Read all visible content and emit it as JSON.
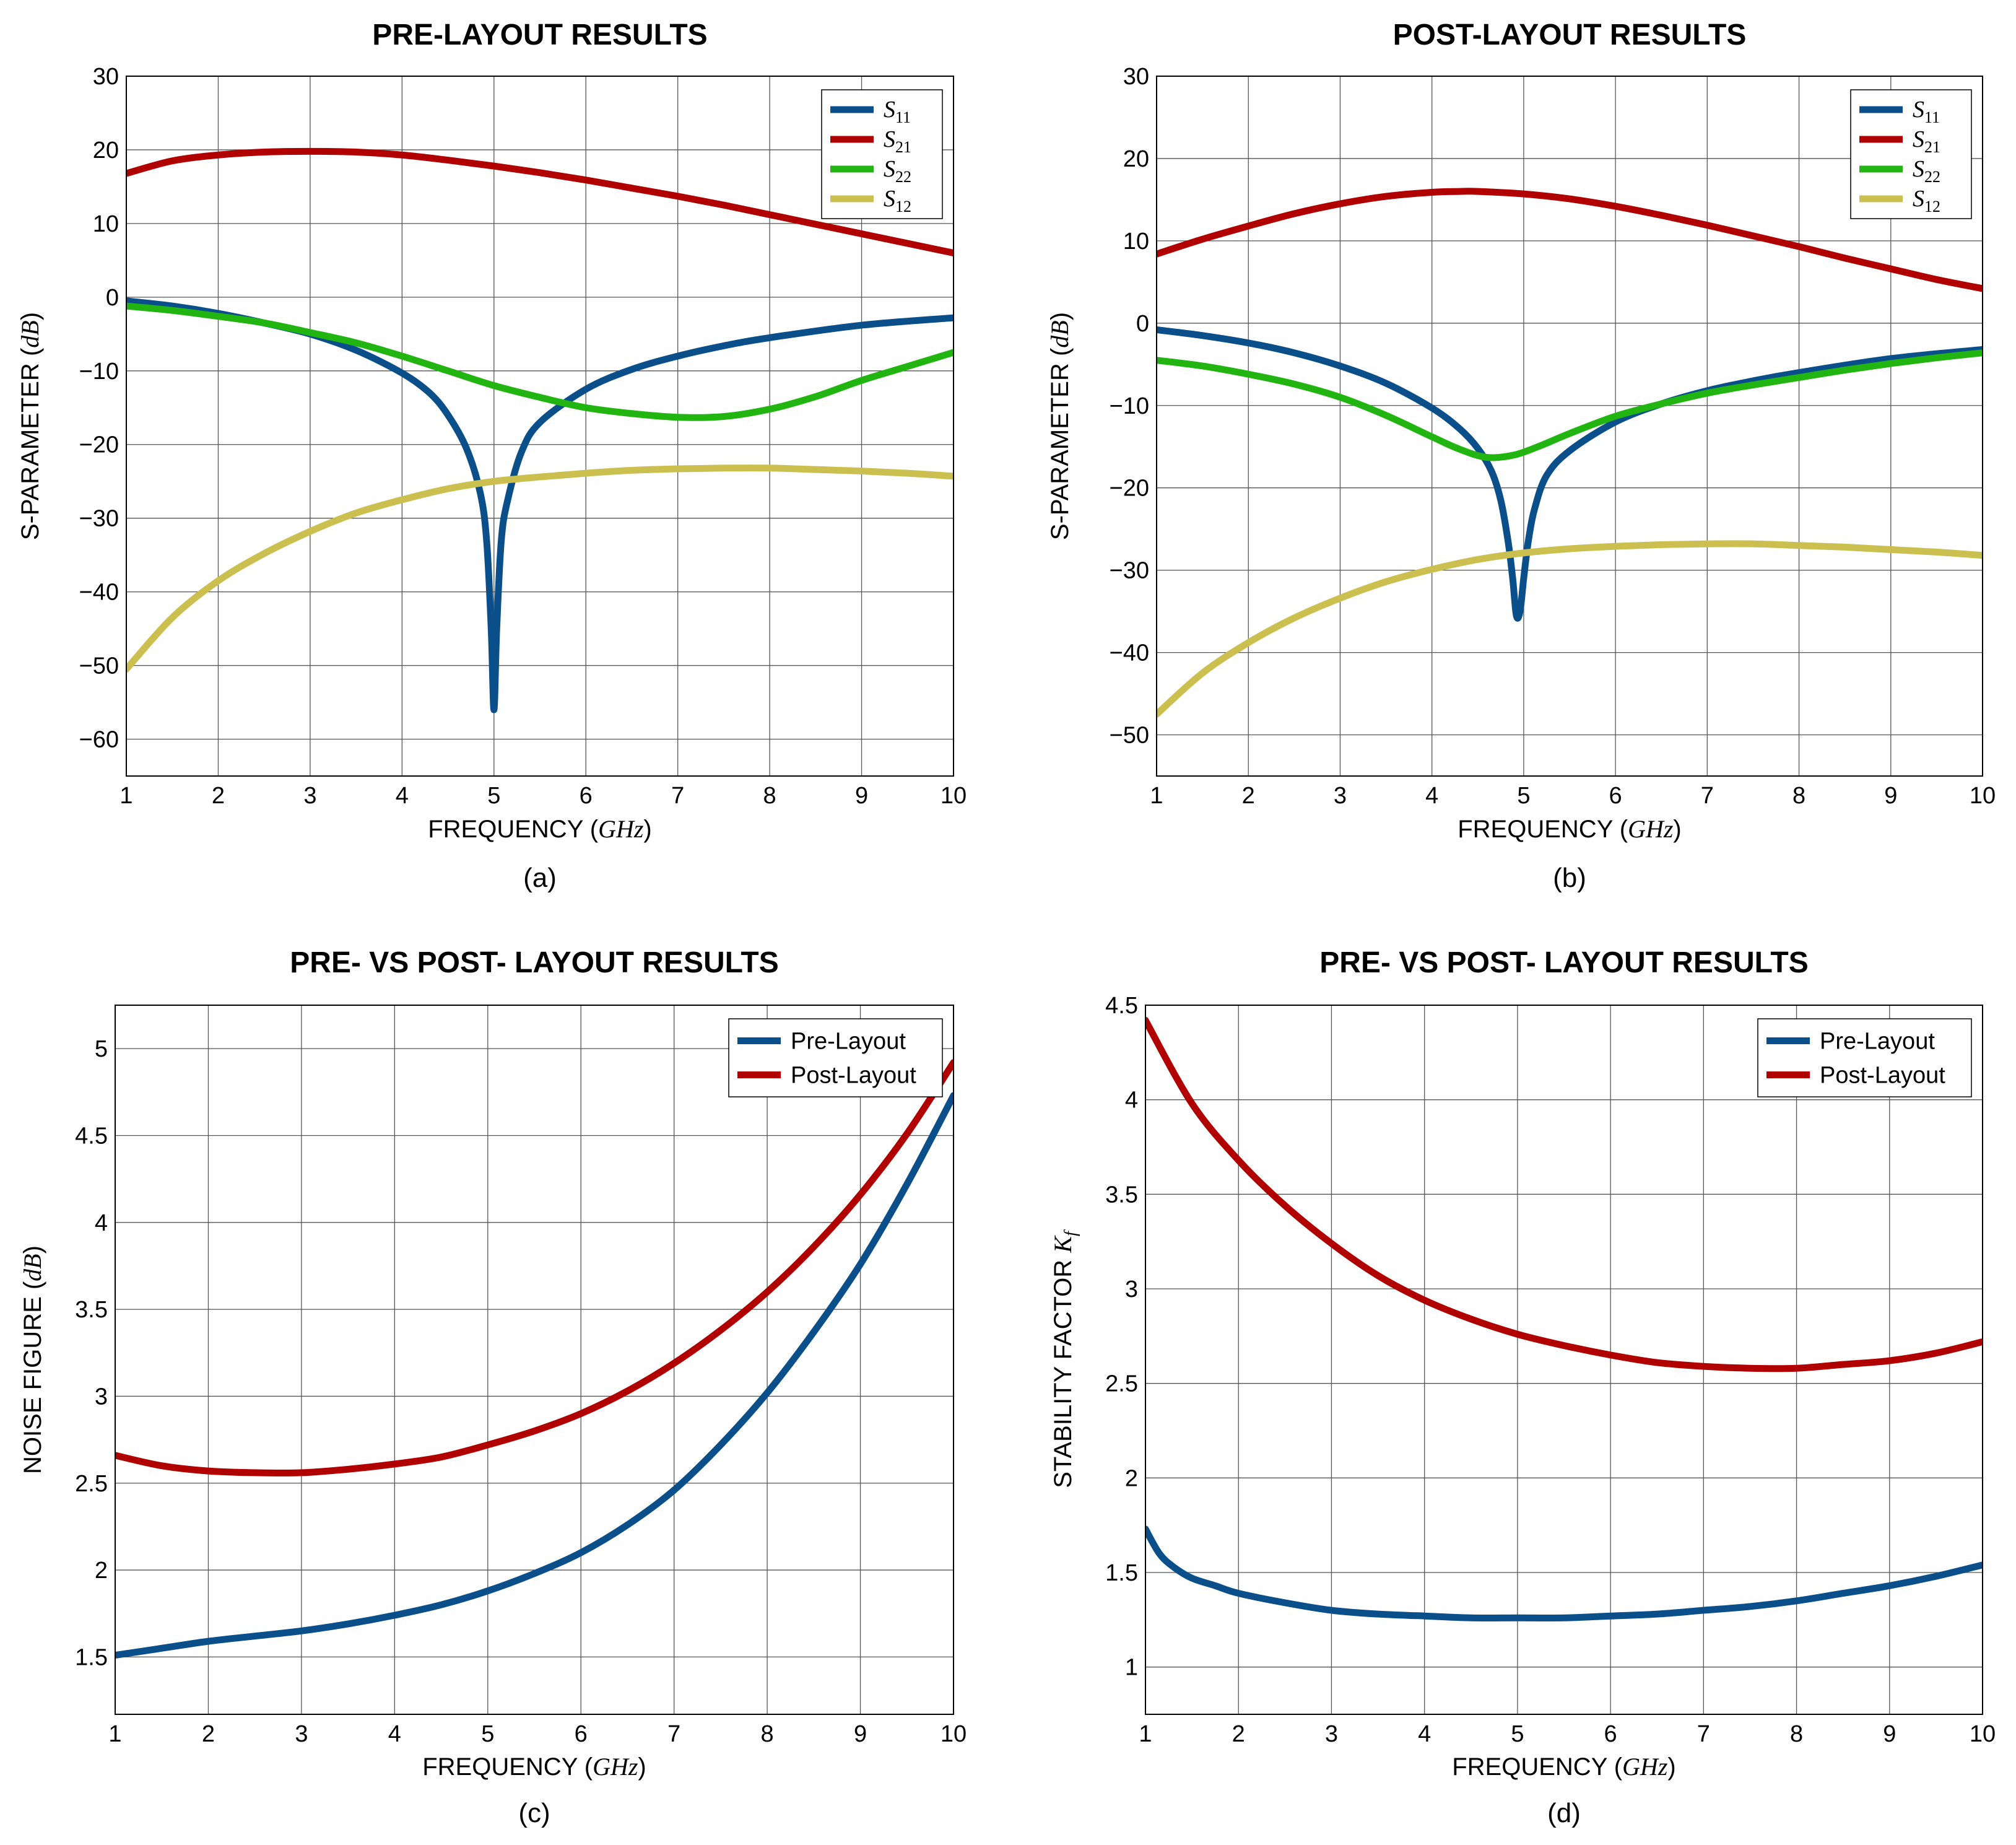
{
  "colors": {
    "blue": "#0b4f8a",
    "red": "#b00000",
    "green": "#22b512",
    "olive": "#cbbf50",
    "grid": "#555555"
  },
  "chart_data": [
    {
      "id": "a",
      "type": "line",
      "title": "PRE-LAYOUT RESULTS",
      "caption": "(a)",
      "xlabel": "FREQUENCY",
      "xlabel_unit": "GHz",
      "ylabel": "S-PARAMETER",
      "ylabel_unit": "dB",
      "xlim": [
        1,
        10
      ],
      "ylim": [
        -65,
        30
      ],
      "xticks": [
        1,
        2,
        3,
        4,
        5,
        6,
        7,
        8,
        9,
        10
      ],
      "yticks": [
        -60,
        -50,
        -40,
        -30,
        -20,
        -10,
        0,
        10,
        20,
        30
      ],
      "ytick_labels": [
        "−60",
        "−50",
        "−40",
        "−30",
        "−20",
        "−10",
        "0",
        "10",
        "20",
        "30"
      ],
      "legend_position": "top-right",
      "grid": true,
      "series": [
        {
          "name": "S11",
          "label_main": "S",
          "label_sub": "11",
          "color": "#0b4f8a",
          "x": [
            1,
            1.5,
            2,
            2.5,
            3,
            3.5,
            4,
            4.3,
            4.5,
            4.7,
            4.85,
            4.92,
            4.97,
            5.0,
            5.03,
            5.08,
            5.15,
            5.3,
            5.5,
            6,
            6.5,
            7,
            7.5,
            8,
            9,
            10
          ],
          "y": [
            -0.5,
            -1.2,
            -2.2,
            -3.5,
            -5.0,
            -7.2,
            -10.3,
            -13.0,
            -16.0,
            -20.5,
            -26.5,
            -33.0,
            -45.0,
            -56.0,
            -45.0,
            -33.0,
            -27.5,
            -21.0,
            -17.0,
            -12.5,
            -9.8,
            -8.0,
            -6.6,
            -5.5,
            -3.8,
            -2.8
          ]
        },
        {
          "name": "S21",
          "label_main": "S",
          "label_sub": "21",
          "color": "#b00000",
          "x": [
            1,
            1.5,
            2,
            2.5,
            3,
            3.5,
            4,
            4.5,
            5,
            5.5,
            6,
            6.5,
            7,
            7.5,
            8,
            8.5,
            9,
            9.5,
            10
          ],
          "y": [
            16.8,
            18.5,
            19.3,
            19.7,
            19.8,
            19.7,
            19.3,
            18.6,
            17.8,
            16.9,
            15.9,
            14.8,
            13.7,
            12.5,
            11.2,
            9.9,
            8.6,
            7.3,
            6.0
          ]
        },
        {
          "name": "S22",
          "label_main": "S",
          "label_sub": "22",
          "color": "#22b512",
          "x": [
            1,
            1.5,
            2,
            2.5,
            3,
            3.5,
            4,
            4.5,
            5,
            5.5,
            6,
            6.5,
            7,
            7.5,
            8,
            8.5,
            9,
            9.5,
            10
          ],
          "y": [
            -1.2,
            -1.8,
            -2.6,
            -3.5,
            -4.8,
            -6.2,
            -8.0,
            -10.0,
            -12.0,
            -13.6,
            -15.0,
            -15.8,
            -16.3,
            -16.2,
            -15.2,
            -13.5,
            -11.3,
            -9.4,
            -7.5
          ]
        },
        {
          "name": "S12",
          "label_main": "S",
          "label_sub": "12",
          "color": "#cbbf50",
          "x": [
            1,
            1.5,
            2,
            2.5,
            3,
            3.5,
            4,
            4.5,
            5,
            5.5,
            6,
            6.5,
            7,
            7.5,
            8,
            8.5,
            9,
            9.5,
            10
          ],
          "y": [
            -50.5,
            -43.5,
            -38.5,
            -34.8,
            -31.8,
            -29.3,
            -27.5,
            -26.0,
            -25.0,
            -24.4,
            -23.9,
            -23.5,
            -23.3,
            -23.2,
            -23.2,
            -23.4,
            -23.6,
            -23.9,
            -24.3
          ]
        }
      ]
    },
    {
      "id": "b",
      "type": "line",
      "title": "POST-LAYOUT RESULTS",
      "caption": "(b)",
      "xlabel": "FREQUENCY",
      "xlabel_unit": "GHz",
      "ylabel": "S-PARAMETER",
      "ylabel_unit": "dB",
      "xlim": [
        1,
        10
      ],
      "ylim": [
        -55,
        30
      ],
      "xticks": [
        1,
        2,
        3,
        4,
        5,
        6,
        7,
        8,
        9,
        10
      ],
      "yticks": [
        -50,
        -40,
        -30,
        -20,
        -10,
        0,
        10,
        20,
        30
      ],
      "ytick_labels": [
        "−50",
        "−40",
        "−30",
        "−20",
        "−10",
        "0",
        "10",
        "20",
        "30"
      ],
      "legend_position": "top-right",
      "grid": true,
      "series": [
        {
          "name": "S11",
          "label_main": "S",
          "label_sub": "11",
          "color": "#0b4f8a",
          "x": [
            1,
            1.5,
            2,
            2.5,
            3,
            3.5,
            4,
            4.3,
            4.5,
            4.65,
            4.75,
            4.83,
            4.88,
            4.92,
            4.96,
            5.0,
            5.05,
            5.12,
            5.25,
            5.5,
            6,
            6.5,
            7,
            7.5,
            8,
            9,
            10
          ],
          "y": [
            -0.8,
            -1.5,
            -2.4,
            -3.6,
            -5.2,
            -7.3,
            -10.3,
            -12.8,
            -15.2,
            -18.0,
            -21.5,
            -26.5,
            -31.0,
            -35.5,
            -35.0,
            -31.0,
            -26.5,
            -22.5,
            -18.5,
            -15.5,
            -12.0,
            -9.8,
            -8.2,
            -7.0,
            -6.0,
            -4.3,
            -3.2
          ]
        },
        {
          "name": "S21",
          "label_main": "S",
          "label_sub": "21",
          "color": "#b00000",
          "x": [
            1,
            1.5,
            2,
            2.5,
            3,
            3.5,
            4,
            4.3,
            4.5,
            5,
            5.5,
            6,
            6.5,
            7,
            7.5,
            8,
            8.5,
            9,
            9.5,
            10
          ],
          "y": [
            8.4,
            10.2,
            11.8,
            13.3,
            14.5,
            15.4,
            15.9,
            16.0,
            16.0,
            15.7,
            15.1,
            14.2,
            13.1,
            11.9,
            10.6,
            9.3,
            7.9,
            6.6,
            5.3,
            4.2
          ]
        },
        {
          "name": "S22",
          "label_main": "S",
          "label_sub": "22",
          "color": "#22b512",
          "x": [
            1,
            1.5,
            2,
            2.5,
            3,
            3.5,
            4,
            4.3,
            4.6,
            4.9,
            5.2,
            5.5,
            6,
            6.5,
            7,
            7.5,
            8,
            8.5,
            9,
            9.5,
            10
          ],
          "y": [
            -4.5,
            -5.2,
            -6.2,
            -7.4,
            -9.0,
            -11.2,
            -13.8,
            -15.3,
            -16.3,
            -16.0,
            -14.8,
            -13.4,
            -11.3,
            -9.8,
            -8.5,
            -7.5,
            -6.6,
            -5.7,
            -4.9,
            -4.2,
            -3.6
          ]
        },
        {
          "name": "S12",
          "label_main": "S",
          "label_sub": "12",
          "color": "#cbbf50",
          "x": [
            1,
            1.5,
            2,
            2.5,
            3,
            3.5,
            4,
            4.5,
            5,
            5.5,
            6,
            6.5,
            7,
            7.5,
            8,
            8.5,
            9,
            9.5,
            10
          ],
          "y": [
            -47.5,
            -42.5,
            -38.8,
            -35.8,
            -33.4,
            -31.4,
            -29.9,
            -28.7,
            -27.9,
            -27.4,
            -27.1,
            -26.9,
            -26.8,
            -26.8,
            -27.0,
            -27.2,
            -27.5,
            -27.8,
            -28.2
          ]
        }
      ]
    },
    {
      "id": "c",
      "type": "line",
      "title": "PRE- VS POST- LAYOUT RESULTS",
      "caption": "(c)",
      "xlabel": "FREQUENCY",
      "xlabel_unit": "GHz",
      "ylabel": "NOISE FIGURE",
      "ylabel_unit": "dB",
      "xlim": [
        1,
        10
      ],
      "ylim": [
        1.17,
        5.25
      ],
      "xticks": [
        1,
        2,
        3,
        4,
        5,
        6,
        7,
        8,
        9,
        10
      ],
      "yticks": [
        1.5,
        2,
        2.5,
        3,
        3.5,
        4,
        4.5,
        5
      ],
      "ytick_labels": [
        "1.5",
        "2",
        "2.5",
        "3",
        "3.5",
        "4",
        "4.5",
        "5"
      ],
      "legend_position": "top-right",
      "grid": true,
      "series": [
        {
          "name": "Pre-Layout",
          "label_main": "Pre-Layout",
          "color": "#0b4f8a",
          "x": [
            1,
            1.5,
            2,
            2.5,
            3,
            3.5,
            4,
            4.5,
            5,
            5.5,
            6,
            6.5,
            7,
            7.5,
            8,
            8.5,
            9,
            9.5,
            10
          ],
          "y": [
            1.51,
            1.55,
            1.59,
            1.62,
            1.65,
            1.69,
            1.74,
            1.8,
            1.88,
            1.98,
            2.1,
            2.26,
            2.46,
            2.72,
            3.02,
            3.37,
            3.76,
            4.22,
            4.73
          ]
        },
        {
          "name": "Post-Layout",
          "label_main": "Post-Layout",
          "color": "#b00000",
          "x": [
            1,
            1.5,
            2,
            2.5,
            3,
            3.5,
            4,
            4.5,
            5,
            5.5,
            6,
            6.5,
            7,
            7.5,
            8,
            8.5,
            9,
            9.5,
            10
          ],
          "y": [
            2.66,
            2.6,
            2.57,
            2.56,
            2.56,
            2.58,
            2.61,
            2.65,
            2.72,
            2.8,
            2.9,
            3.03,
            3.19,
            3.38,
            3.6,
            3.86,
            4.16,
            4.51,
            4.92
          ]
        }
      ]
    },
    {
      "id": "d",
      "type": "line",
      "title": "PRE- VS POST- LAYOUT RESULTS",
      "caption": "(d)",
      "xlabel": "FREQUENCY",
      "xlabel_unit": "GHz",
      "ylabel": "STABILITY FACTOR",
      "ylabel_unit": "Kf",
      "xlim": [
        1,
        10
      ],
      "ylim": [
        0.75,
        4.5
      ],
      "xticks": [
        1,
        2,
        3,
        4,
        5,
        6,
        7,
        8,
        9,
        10
      ],
      "yticks": [
        1,
        1.5,
        2,
        2.5,
        3,
        3.5,
        4,
        4.5
      ],
      "ytick_labels": [
        "1",
        "1.5",
        "2",
        "2.5",
        "3",
        "3.5",
        "4",
        "4.5"
      ],
      "legend_position": "top-right",
      "grid": true,
      "series": [
        {
          "name": "Pre-Layout",
          "label_main": "Pre-Layout",
          "color": "#0b4f8a",
          "x": [
            1,
            1.15,
            1.3,
            1.5,
            1.75,
            2,
            2.5,
            3,
            3.5,
            4,
            4.5,
            5,
            5.5,
            6,
            6.5,
            7,
            7.5,
            8,
            8.5,
            9,
            9.5,
            10
          ],
          "y": [
            1.73,
            1.6,
            1.53,
            1.47,
            1.43,
            1.39,
            1.34,
            1.3,
            1.28,
            1.27,
            1.26,
            1.26,
            1.26,
            1.27,
            1.28,
            1.3,
            1.32,
            1.35,
            1.39,
            1.43,
            1.48,
            1.54
          ]
        },
        {
          "name": "Post-Layout",
          "label_main": "Post-Layout",
          "color": "#b00000",
          "x": [
            1,
            1.5,
            2,
            2.5,
            3,
            3.5,
            4,
            4.5,
            5,
            5.5,
            6,
            6.5,
            7,
            7.5,
            8,
            8.5,
            9,
            9.5,
            10
          ],
          "y": [
            4.42,
            3.98,
            3.68,
            3.44,
            3.24,
            3.07,
            2.94,
            2.84,
            2.76,
            2.7,
            2.65,
            2.61,
            2.59,
            2.58,
            2.58,
            2.6,
            2.62,
            2.66,
            2.72
          ]
        }
      ]
    }
  ]
}
